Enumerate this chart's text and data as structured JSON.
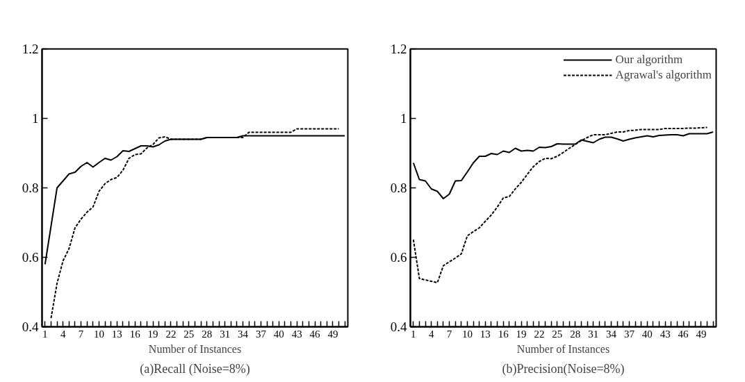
{
  "chart_data": [
    {
      "type": "line",
      "title": "(a)Recall (Noise=8%)",
      "xlabel": "Number of Instances",
      "x": [
        1,
        2,
        3,
        4,
        5,
        6,
        7,
        8,
        9,
        10,
        11,
        12,
        13,
        14,
        15,
        16,
        17,
        18,
        19,
        20,
        21,
        22,
        23,
        24,
        25,
        26,
        27,
        28,
        29,
        30,
        31,
        32,
        33,
        34,
        35,
        36,
        37,
        38,
        39,
        40,
        41,
        42,
        43,
        44,
        45,
        46,
        47,
        48,
        49,
        50,
        51
      ],
      "series": [
        {
          "color": "#000000",
          "line_style": "solid",
          "values": [
            0.58,
            0.69,
            0.8,
            0.82,
            0.84,
            0.845,
            0.862,
            0.873,
            0.86,
            0.873,
            0.885,
            0.88,
            0.89,
            0.907,
            0.905,
            0.913,
            0.921,
            0.921,
            0.918,
            0.924,
            0.935,
            0.94,
            0.94,
            0.94,
            0.94,
            0.94,
            0.94,
            0.945,
            0.945,
            0.945,
            0.945,
            0.945,
            0.945,
            0.95,
            0.95,
            0.95,
            0.95,
            0.95,
            0.95,
            0.95,
            0.95,
            0.95,
            0.95,
            0.95,
            0.95,
            0.95,
            0.95,
            0.95,
            0.95,
            0.95,
            0.95
          ]
        },
        {
          "color": "#000000",
          "line_style": "dashed",
          "values": [
            null,
            0.425,
            0.525,
            0.59,
            0.625,
            0.685,
            0.71,
            0.73,
            0.745,
            0.79,
            0.812,
            0.824,
            0.83,
            0.851,
            0.885,
            0.896,
            0.898,
            0.915,
            0.925,
            0.944,
            0.947,
            0.94,
            0.94,
            0.94,
            0.94,
            0.94,
            0.94,
            0.945,
            0.945,
            0.945,
            0.945,
            0.945,
            0.945,
            0.945,
            0.96,
            0.96,
            0.96,
            0.96,
            0.96,
            0.96,
            0.96,
            0.96,
            0.97,
            0.97,
            0.97,
            0.97,
            0.97,
            0.97,
            0.97,
            0.97,
            null
          ]
        }
      ],
      "xlim": [
        0.5,
        51.5
      ],
      "ylim": [
        0.4,
        1.2
      ],
      "yticks": [
        0.4,
        0.6,
        0.8,
        1,
        1.2
      ],
      "xticks": [
        1,
        {
          "value": 2,
          "label": null
        },
        {
          "value": 3,
          "label": null
        },
        4,
        {
          "value": 5,
          "label": null
        },
        {
          "value": 6,
          "label": null
        },
        7,
        {
          "value": 8,
          "label": null
        },
        {
          "value": 9,
          "label": null
        },
        10,
        {
          "value": 11,
          "label": null
        },
        {
          "value": 12,
          "label": null
        },
        13,
        {
          "value": 14,
          "label": null
        },
        {
          "value": 15,
          "label": null
        },
        16,
        {
          "value": 17,
          "label": null
        },
        {
          "value": 18,
          "label": null
        },
        19,
        {
          "value": 20,
          "label": null
        },
        {
          "value": 21,
          "label": null
        },
        22,
        {
          "value": 23,
          "label": null
        },
        {
          "value": 24,
          "label": null
        },
        25,
        {
          "value": 26,
          "label": null
        },
        {
          "value": 27,
          "label": null
        },
        28,
        {
          "value": 29,
          "label": null
        },
        {
          "value": 30,
          "label": null
        },
        31,
        {
          "value": 32,
          "label": null
        },
        {
          "value": 33,
          "label": null
        },
        34,
        {
          "value": 35,
          "label": null
        },
        {
          "value": 36,
          "label": null
        },
        37,
        {
          "value": 38,
          "label": null
        },
        {
          "value": 39,
          "label": null
        },
        40,
        {
          "value": 41,
          "label": null
        },
        {
          "value": 42,
          "label": null
        },
        43,
        {
          "value": 44,
          "label": null
        },
        {
          "value": 45,
          "label": null
        },
        46,
        {
          "value": 47,
          "label": null
        },
        {
          "value": 48,
          "label": null
        },
        49,
        {
          "value": 50,
          "label": null
        },
        {
          "value": 51,
          "label": null
        }
      ],
      "grid": false,
      "legend": false,
      "marker": "none"
    },
    {
      "type": "line",
      "title": "(b)Precision(Noise=8%)",
      "xlabel": "Number of Instances",
      "x": [
        1,
        2,
        3,
        4,
        5,
        6,
        7,
        8,
        9,
        10,
        11,
        12,
        13,
        14,
        15,
        16,
        17,
        18,
        19,
        20,
        21,
        22,
        23,
        24,
        25,
        26,
        27,
        28,
        29,
        30,
        31,
        32,
        33,
        34,
        35,
        36,
        37,
        38,
        39,
        40,
        41,
        42,
        43,
        44,
        45,
        46,
        47,
        48,
        49,
        50,
        51
      ],
      "series": [
        {
          "name": "Our algorithm",
          "color": "#000000",
          "line_style": "solid",
          "values": [
            0.872,
            0.824,
            0.82,
            0.797,
            0.79,
            0.769,
            0.782,
            0.82,
            0.821,
            0.846,
            0.872,
            0.891,
            0.891,
            0.899,
            0.896,
            0.906,
            0.902,
            0.914,
            0.906,
            0.908,
            0.906,
            0.917,
            0.916,
            0.919,
            0.927,
            0.926,
            0.926,
            0.926,
            0.938,
            0.934,
            0.93,
            0.94,
            0.946,
            0.946,
            0.941,
            0.935,
            0.94,
            0.944,
            0.947,
            0.95,
            0.947,
            0.951,
            0.952,
            0.953,
            0.953,
            0.95,
            0.956,
            0.956,
            0.956,
            0.956,
            0.961
          ]
        },
        {
          "name": "Agrawal's algorithm",
          "color": "#000000",
          "line_style": "dashed",
          "values": [
            0.651,
            0.539,
            0.535,
            0.531,
            0.527,
            0.576,
            0.587,
            0.598,
            0.61,
            0.662,
            0.674,
            0.685,
            0.704,
            0.722,
            0.745,
            0.771,
            0.775,
            0.797,
            0.816,
            0.839,
            0.861,
            0.876,
            0.885,
            0.884,
            0.891,
            0.902,
            0.914,
            0.925,
            0.936,
            0.945,
            0.953,
            0.953,
            0.953,
            0.957,
            0.961,
            0.961,
            0.965,
            0.966,
            0.968,
            0.968,
            0.968,
            0.968,
            0.971,
            0.971,
            0.971,
            0.971,
            0.972,
            0.972,
            0.973,
            0.974,
            null
          ]
        }
      ],
      "xlim": [
        0.5,
        51.5
      ],
      "ylim": [
        0.4,
        1.2
      ],
      "yticks": [
        0.4,
        0.6,
        0.8,
        1,
        1.2
      ],
      "xticks": [
        1,
        {
          "value": 2,
          "label": null
        },
        {
          "value": 3,
          "label": null
        },
        4,
        {
          "value": 5,
          "label": null
        },
        {
          "value": 6,
          "label": null
        },
        7,
        {
          "value": 8,
          "label": null
        },
        {
          "value": 9,
          "label": null
        },
        10,
        {
          "value": 11,
          "label": null
        },
        {
          "value": 12,
          "label": null
        },
        13,
        {
          "value": 14,
          "label": null
        },
        {
          "value": 15,
          "label": null
        },
        16,
        {
          "value": 17,
          "label": null
        },
        {
          "value": 18,
          "label": null
        },
        19,
        {
          "value": 20,
          "label": null
        },
        {
          "value": 21,
          "label": null
        },
        22,
        {
          "value": 23,
          "label": null
        },
        {
          "value": 24,
          "label": null
        },
        25,
        {
          "value": 26,
          "label": null
        },
        {
          "value": 27,
          "label": null
        },
        28,
        {
          "value": 29,
          "label": null
        },
        {
          "value": 30,
          "label": null
        },
        31,
        {
          "value": 32,
          "label": null
        },
        {
          "value": 33,
          "label": null
        },
        34,
        {
          "value": 35,
          "label": null
        },
        {
          "value": 36,
          "label": null
        },
        37,
        {
          "value": 38,
          "label": null
        },
        {
          "value": 39,
          "label": null
        },
        40,
        {
          "value": 41,
          "label": null
        },
        {
          "value": 42,
          "label": null
        },
        43,
        {
          "value": 44,
          "label": null
        },
        {
          "value": 45,
          "label": null
        },
        46,
        {
          "value": 47,
          "label": null
        },
        {
          "value": 48,
          "label": null
        },
        49,
        {
          "value": 50,
          "label": null
        },
        {
          "value": 51,
          "label": null
        }
      ],
      "grid": false,
      "legend": "top right",
      "marker": "none"
    }
  ]
}
